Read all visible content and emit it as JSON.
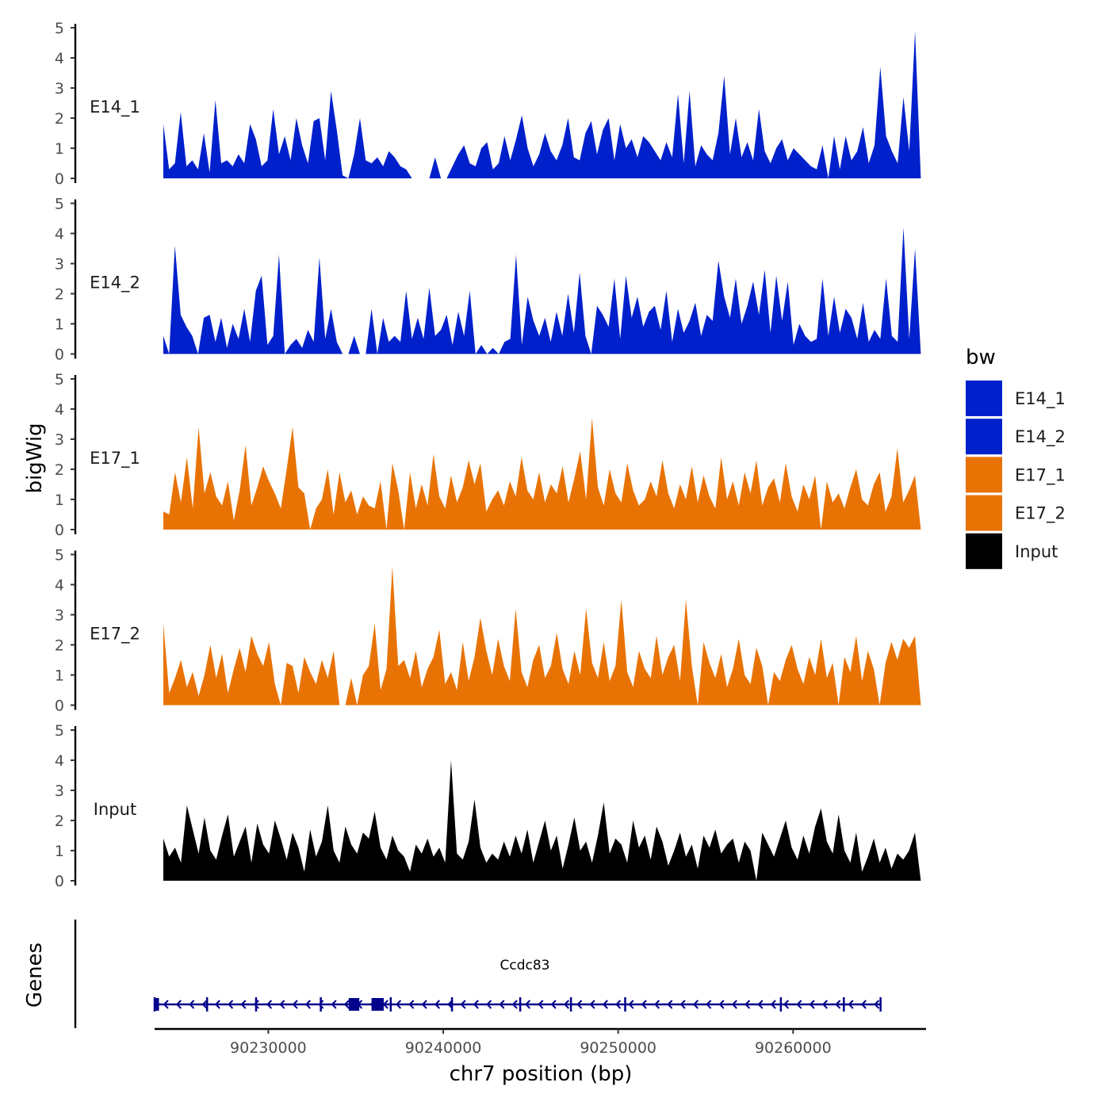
{
  "chart_data": {
    "type": "area",
    "title": "",
    "xlabel": "chr7 position (bp)",
    "ylabel": "bigWig",
    "genes_panel_label": "Genes",
    "xlim": [
      90223500,
      90267600
    ],
    "ylim": [
      0,
      5
    ],
    "y_ticks": [
      0,
      1,
      2,
      3,
      4,
      5
    ],
    "x_ticks": [
      90230000,
      90240000,
      90250000,
      90260000
    ],
    "x_tick_labels": [
      "90230000",
      "90240000",
      "90250000",
      "90260000"
    ],
    "legend": {
      "title": "bw",
      "placement": "right",
      "entries": [
        {
          "label": "E14_1",
          "color": "#0020CC"
        },
        {
          "label": "E14_2",
          "color": "#0020CC"
        },
        {
          "label": "E17_1",
          "color": "#E87304"
        },
        {
          "label": "E17_2",
          "color": "#E87304"
        },
        {
          "label": "Input",
          "color": "#000000"
        }
      ]
    },
    "series": [
      {
        "name": "E14_1",
        "color": "#0020CC",
        "x_start": 90224000,
        "x_end": 90267300,
        "values": [
          1.8,
          0.3,
          0.5,
          2.2,
          0.4,
          0.6,
          0.3,
          1.5,
          0.2,
          2.6,
          0.5,
          0.6,
          0.4,
          0.8,
          0.5,
          1.8,
          1.3,
          0.4,
          0.6,
          2.3,
          0.8,
          1.4,
          0.6,
          2.0,
          1.1,
          0.5,
          1.9,
          2.0,
          0.6,
          2.9,
          1.6,
          0.1,
          0.0,
          0.8,
          2.0,
          0.6,
          0.5,
          0.7,
          0.4,
          0.9,
          0.7,
          0.4,
          0.3,
          0.0,
          0.0,
          0.0,
          0.0,
          0.7,
          0.0,
          0.0,
          0.4,
          0.8,
          1.1,
          0.5,
          0.4,
          1.0,
          1.2,
          0.3,
          0.5,
          1.4,
          0.6,
          1.3,
          2.1,
          1.0,
          0.4,
          0.8,
          1.5,
          0.9,
          0.6,
          1.1,
          2.0,
          0.7,
          0.6,
          1.5,
          1.9,
          0.8,
          1.6,
          2.0,
          0.6,
          1.8,
          1.0,
          1.3,
          0.7,
          1.4,
          1.2,
          0.9,
          0.6,
          1.2,
          0.7,
          2.8,
          0.5,
          2.9,
          0.4,
          1.1,
          0.8,
          0.6,
          1.5,
          3.4,
          0.8,
          2.0,
          0.7,
          1.2,
          0.6,
          2.3,
          0.9,
          0.5,
          1.0,
          1.3,
          0.6,
          1.0,
          0.8,
          0.6,
          0.4,
          0.3,
          1.1,
          0.0,
          1.4,
          0.3,
          1.4,
          0.6,
          0.9,
          1.7,
          0.5,
          1.1,
          3.7,
          1.4,
          0.9,
          0.5,
          2.7,
          0.9,
          4.9,
          0.0
        ],
        "label": "E14_1"
      },
      {
        "name": "E14_2",
        "color": "#0020CC",
        "x_start": 90224000,
        "x_end": 90267300,
        "values": [
          0.6,
          0.0,
          3.6,
          1.3,
          0.9,
          0.6,
          0.0,
          1.2,
          1.3,
          0.4,
          1.2,
          0.2,
          1.0,
          0.5,
          1.5,
          0.4,
          2.1,
          2.6,
          0.3,
          0.6,
          3.3,
          0.0,
          0.3,
          0.5,
          0.2,
          0.8,
          0.4,
          3.2,
          0.5,
          1.5,
          0.4,
          0.0,
          0.0,
          0.6,
          0.0,
          0.0,
          1.5,
          0.0,
          1.2,
          0.4,
          0.6,
          0.4,
          2.1,
          0.5,
          1.2,
          0.5,
          2.2,
          0.6,
          0.8,
          1.3,
          0.3,
          1.4,
          0.6,
          2.1,
          0.0,
          0.3,
          0.0,
          0.2,
          0.0,
          0.4,
          0.5,
          3.3,
          0.3,
          1.9,
          1.1,
          0.6,
          1.2,
          0.4,
          1.4,
          0.6,
          2.0,
          0.7,
          2.7,
          0.6,
          0.0,
          1.6,
          1.3,
          0.9,
          2.5,
          0.5,
          2.6,
          1.2,
          1.9,
          0.9,
          1.4,
          1.6,
          0.8,
          2.1,
          0.4,
          1.5,
          0.7,
          1.1,
          1.7,
          0.6,
          1.3,
          1.1,
          3.1,
          1.9,
          1.2,
          2.5,
          1.0,
          1.6,
          2.4,
          1.3,
          2.8,
          0.7,
          2.6,
          1.1,
          2.4,
          0.3,
          1.0,
          0.6,
          0.4,
          0.5,
          2.5,
          0.6,
          1.9,
          0.7,
          1.5,
          1.2,
          0.5,
          1.7,
          0.4,
          0.8,
          0.5,
          2.5,
          0.6,
          0.4,
          4.2,
          0.5,
          3.5,
          0.0
        ],
        "label": "E14_2"
      },
      {
        "name": "E17_1",
        "color": "#E87304",
        "x_start": 90224000,
        "x_end": 90267300,
        "values": [
          0.6,
          0.5,
          1.9,
          0.9,
          2.4,
          0.7,
          3.4,
          1.2,
          1.9,
          1.1,
          0.8,
          1.6,
          0.3,
          1.3,
          2.8,
          0.8,
          1.4,
          2.1,
          1.6,
          1.2,
          0.7,
          2.0,
          3.4,
          1.4,
          1.2,
          0.0,
          0.7,
          1.0,
          2.0,
          0.5,
          1.9,
          0.9,
          1.3,
          0.5,
          1.1,
          0.8,
          0.7,
          1.6,
          0.0,
          2.2,
          1.3,
          0.0,
          1.9,
          0.7,
          1.5,
          0.8,
          2.5,
          1.1,
          0.7,
          1.8,
          0.9,
          1.4,
          2.3,
          1.5,
          2.2,
          0.6,
          1.0,
          1.3,
          0.8,
          1.6,
          1.1,
          2.4,
          1.3,
          1.0,
          1.9,
          0.9,
          1.5,
          1.2,
          2.1,
          0.9,
          1.7,
          2.6,
          1.0,
          3.7,
          1.4,
          0.8,
          2.0,
          1.2,
          0.9,
          2.2,
          1.3,
          0.8,
          1.0,
          1.6,
          1.1,
          2.3,
          1.2,
          0.7,
          1.5,
          1.0,
          2.1,
          0.9,
          1.8,
          1.1,
          0.7,
          2.4,
          1.0,
          1.6,
          0.8,
          1.9,
          1.2,
          2.3,
          0.8,
          1.4,
          1.7,
          0.9,
          2.2,
          1.1,
          0.6,
          1.5,
          1.0,
          1.8,
          0.0,
          1.6,
          0.9,
          1.2,
          0.7,
          1.4,
          2.0,
          1.0,
          0.8,
          1.5,
          1.9,
          0.6,
          1.1,
          2.7,
          0.9,
          1.3,
          1.8,
          0.0
        ],
        "label": "E17_1"
      },
      {
        "name": "E17_2",
        "color": "#E87304",
        "x_start": 90224000,
        "x_end": 90267300,
        "values": [
          2.7,
          0.4,
          0.9,
          1.5,
          0.6,
          1.1,
          0.3,
          1.0,
          2.0,
          0.9,
          1.7,
          0.4,
          1.2,
          1.9,
          1.1,
          2.3,
          1.7,
          1.3,
          2.1,
          0.7,
          0.0,
          1.4,
          1.3,
          0.4,
          1.6,
          1.1,
          0.7,
          1.5,
          0.9,
          1.8,
          0.0,
          0.0,
          0.9,
          0.0,
          1.0,
          1.3,
          2.7,
          0.5,
          1.2,
          4.6,
          1.3,
          1.5,
          0.9,
          1.8,
          0.6,
          1.2,
          1.6,
          2.5,
          0.7,
          1.1,
          0.5,
          2.1,
          0.8,
          1.6,
          2.9,
          1.8,
          1.0,
          2.2,
          1.3,
          0.8,
          3.2,
          1.1,
          0.6,
          1.5,
          2.0,
          0.9,
          1.3,
          2.4,
          1.2,
          0.7,
          1.8,
          1.0,
          3.2,
          1.4,
          0.9,
          2.1,
          0.8,
          1.3,
          3.5,
          1.1,
          0.6,
          1.8,
          1.2,
          0.9,
          2.3,
          1.0,
          1.6,
          2.0,
          0.8,
          3.5,
          1.3,
          0.0,
          2.1,
          1.4,
          0.9,
          1.7,
          0.6,
          1.2,
          2.2,
          1.0,
          0.7,
          1.9,
          1.3,
          0.0,
          1.1,
          0.8,
          1.5,
          2.0,
          1.2,
          0.7,
          1.6,
          1.0,
          2.2,
          0.9,
          1.4,
          0.0,
          1.6,
          1.1,
          2.3,
          0.8,
          1.8,
          1.2,
          0.0,
          1.4,
          2.1,
          1.5,
          2.2,
          1.9,
          2.3,
          0.0
        ],
        "label": "E17_2"
      },
      {
        "name": "Input",
        "color": "#000000",
        "x_start": 90224000,
        "x_end": 90267300,
        "values": [
          1.4,
          0.8,
          1.1,
          0.6,
          2.5,
          1.7,
          0.9,
          2.1,
          1.0,
          0.7,
          1.5,
          2.2,
          0.8,
          1.3,
          1.8,
          0.6,
          1.9,
          1.2,
          0.9,
          2.0,
          1.4,
          0.7,
          1.6,
          1.1,
          0.3,
          1.7,
          0.8,
          1.3,
          2.5,
          1.0,
          0.6,
          1.8,
          1.2,
          0.9,
          1.6,
          1.4,
          2.3,
          1.1,
          0.7,
          1.5,
          1.0,
          0.8,
          0.3,
          1.2,
          0.9,
          1.4,
          0.8,
          1.1,
          0.6,
          4.0,
          0.9,
          0.7,
          1.3,
          2.7,
          1.1,
          0.6,
          0.9,
          0.7,
          1.3,
          0.8,
          1.5,
          0.9,
          1.7,
          0.6,
          1.3,
          2.0,
          1.0,
          1.5,
          0.4,
          1.2,
          2.1,
          1.0,
          1.3,
          0.6,
          1.5,
          2.6,
          0.9,
          1.4,
          1.2,
          0.6,
          2.0,
          1.1,
          1.5,
          0.7,
          1.8,
          1.3,
          0.5,
          1.0,
          1.6,
          0.8,
          1.2,
          0.4,
          1.5,
          1.1,
          1.7,
          0.9,
          1.2,
          1.4,
          0.6,
          1.3,
          1.0,
          0.0,
          1.6,
          1.2,
          0.8,
          1.4,
          2.0,
          1.1,
          0.7,
          1.5,
          0.9,
          1.8,
          2.4,
          1.3,
          0.9,
          2.2,
          1.0,
          0.6,
          1.6,
          0.3,
          0.8,
          1.4,
          0.6,
          1.1,
          0.4,
          0.9,
          0.7,
          1.0,
          1.6,
          0.0
        ],
        "label": "Input"
      }
    ],
    "gene": {
      "name": "Ccdc83",
      "strand": "-",
      "color": "#00008B",
      "start": 90223500,
      "end": 90265000,
      "exons": [
        [
          90223550,
          90223750
        ],
        [
          90234600,
          90235200
        ],
        [
          90235900,
          90236600
        ]
      ],
      "exon_tick_positions": [
        90226500,
        90229300,
        90233000,
        90237000,
        90240500,
        90244400,
        90247300,
        90250400,
        90259300,
        90262900
      ]
    }
  }
}
